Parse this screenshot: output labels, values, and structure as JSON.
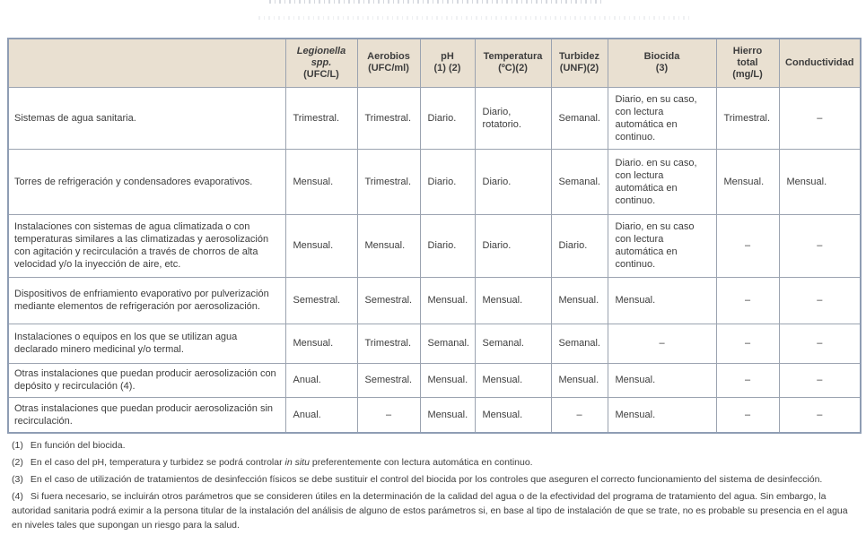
{
  "colors": {
    "header_bg": "#e9e0d1",
    "inner_border": "#9ba3b0",
    "outer_border": "#8f9db4",
    "text": "#3d3d3d"
  },
  "table": {
    "columns": [
      {
        "id": "installation",
        "lines": []
      },
      {
        "id": "legionella",
        "lines": [
          {
            "text": "Legionella",
            "italic": true
          },
          {
            "text": "spp.",
            "italic": true
          },
          {
            "text": "(UFC/L)"
          }
        ]
      },
      {
        "id": "aerobios",
        "lines": [
          {
            "text": "Aerobios"
          },
          {
            "text": "(UFC/ml)"
          }
        ]
      },
      {
        "id": "ph",
        "lines": [
          {
            "text": "pH"
          },
          {
            "text": "(1) (2)"
          }
        ]
      },
      {
        "id": "temperatura",
        "lines": [
          {
            "text": "Temperatura"
          },
          {
            "text": "(ºC)(2)"
          }
        ]
      },
      {
        "id": "turbidez",
        "lines": [
          {
            "text": "Turbidez"
          },
          {
            "text": "(UNF)(2)"
          }
        ]
      },
      {
        "id": "biocida",
        "lines": [
          {
            "text": "Biocida"
          },
          {
            "text": "(3)"
          }
        ]
      },
      {
        "id": "hierro-total",
        "lines": [
          {
            "text": "Hierro"
          },
          {
            "text": "total"
          },
          {
            "text": "(mg/L)"
          }
        ]
      },
      {
        "id": "conductividad",
        "lines": [
          {
            "text": "Conductividad"
          }
        ]
      }
    ],
    "rows": [
      {
        "label": "Sistemas de agua sanitaria.",
        "values": [
          "Trimestral.",
          "Trimestral.",
          "Diario.",
          "Diario, rotatorio.",
          "Semanal.",
          "Diario, en su caso, con lectura automática en continuo.",
          "Trimestral.",
          "–"
        ]
      },
      {
        "label": "Torres de refrigeración y condensadores evaporativos.",
        "values": [
          "Mensual.",
          "Trimestral.",
          "Diario.",
          "Diario.",
          "Semanal.",
          "Diario. en su caso, con lectura automática en continuo.",
          "Mensual.",
          "Mensual."
        ]
      },
      {
        "label": "Instalaciones con sistemas de agua climatizada o con temperaturas similares a las climatizadas y aerosolización con agitación y recirculación a través de chorros de alta velocidad y/o la inyección de aire, etc.",
        "values": [
          "Mensual.",
          "Mensual.",
          "Diario.",
          "Diario.",
          "Diario.",
          "Diario, en su caso con lectura automática en continuo.",
          "–",
          "–"
        ]
      },
      {
        "label": "Dispositivos de enfriamiento evaporativo por pulverización mediante elementos de refrigeración por aerosolización.",
        "values": [
          "Semestral.",
          "Semestral.",
          "Mensual.",
          "Mensual.",
          "Mensual.",
          "Mensual.",
          "–",
          "–"
        ]
      },
      {
        "label": "Instalaciones o equipos en los que se utilizan agua declarado minero medicinal y/o termal.",
        "values": [
          "Mensual.",
          "Trimestral.",
          "Semanal.",
          "Semanal.",
          "Semanal.",
          "–",
          "–",
          "–"
        ]
      },
      {
        "label": "Otras instalaciones que puedan producir aerosolización con depósito y recirculación (4).",
        "values": [
          "Anual.",
          "Semestral.",
          "Mensual.",
          "Mensual.",
          "Mensual.",
          "Mensual.",
          "–",
          "–"
        ]
      },
      {
        "label": "Otras instalaciones que puedan producir aerosolización sin recirculación.",
        "values": [
          "Anual.",
          "–",
          "Mensual.",
          "Mensual.",
          "–",
          "Mensual.",
          "–",
          "–"
        ]
      }
    ],
    "dash": "–"
  },
  "footnotes": [
    {
      "num": "(1)",
      "segments": [
        {
          "text": "En función del biocida."
        }
      ]
    },
    {
      "num": "(2)",
      "segments": [
        {
          "text": "En el caso del pH, temperatura y turbidez se podrá controlar "
        },
        {
          "text": "in situ",
          "italic": true
        },
        {
          "text": " preferentemente con lectura automática en continuo."
        }
      ]
    },
    {
      "num": "(3)",
      "segments": [
        {
          "text": "En el caso de utilización de tratamientos de desinfección físicos se debe sustituir el control del biocida por los controles que aseguren el correcto funcionamiento del sistema de desinfección."
        }
      ]
    },
    {
      "num": "(4)",
      "segments": [
        {
          "text": "Si fuera necesario, se incluirán otros parámetros que se consideren útiles en la determinación de la calidad del agua o de la efectividad del programa de tratamiento del agua. Sin embargo, la autoridad sanitaria podrá eximir a la persona titular de la instalación del análisis de alguno de estos parámetros si, en base al tipo de instalación de que se trate, no es probable su presencia en el agua en niveles tales que supongan un riesgo para la salud."
        }
      ]
    }
  ]
}
